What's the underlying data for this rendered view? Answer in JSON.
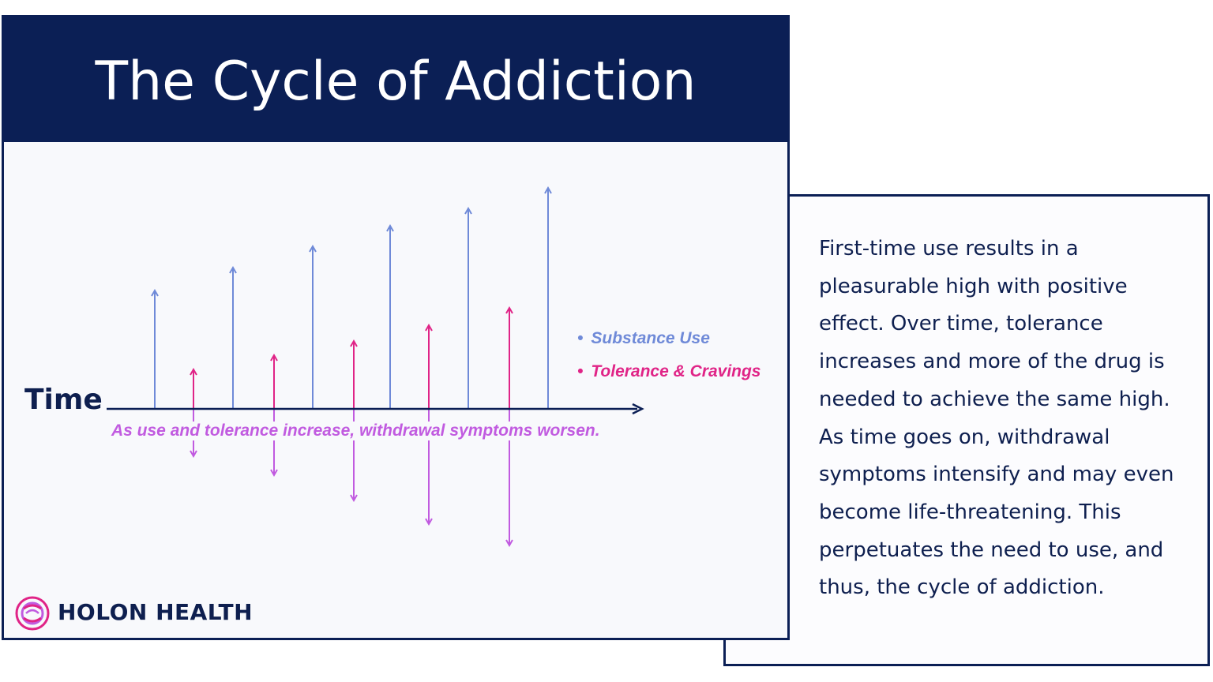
{
  "title": "The Cycle of Addiction",
  "axis_label": "Time",
  "legend": {
    "substance_use": "Substance Use",
    "tolerance_cravings": "Tolerance & Cravings"
  },
  "caption": "As use and tolerance increase, withdrawal symptoms worsen.",
  "description": "First-time use results in a pleasurable high with positive effect. Over time, tolerance increases and more of the drug is needed to achieve the same high. As time goes on, withdrawal symptoms intensify and may even become life-threatening. This perpetuates the need to use, and thus, the cycle of addiction.",
  "brand": {
    "name": "HOLON HEALTH",
    "logo_icon": "spiral-logo-icon"
  },
  "colors": {
    "navy": "#0b1f55",
    "substance_use": "#6f8ad8",
    "tolerance_cravings": "#e02487",
    "withdrawal": "#c15be0"
  }
}
